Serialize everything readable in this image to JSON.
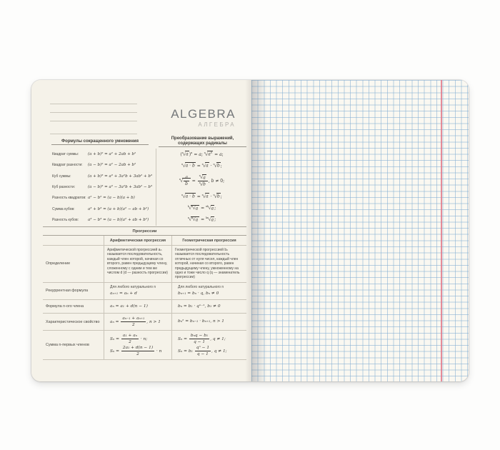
{
  "notebook": {
    "title": "ALGEBRA",
    "subtitle": "АЛГЕБРА",
    "colors": {
      "left_page_cream": "#f5f2e9",
      "grid_paper": "#faf8f1",
      "grid_blue": "#aecfe6",
      "margin_red": "#e2707f",
      "title_gray": "#75787a",
      "subtitle_gray": "#b3b0ab",
      "text_dark": "#3a3834"
    },
    "multiplication": {
      "header": "Формулы сокращенного умножения",
      "rows": [
        {
          "label": "Квадрат суммы:",
          "formula": "(a + b)² = a² + 2ab + b²"
        },
        {
          "label": "Квадрат разности:",
          "formula": "(a − b)² = a² − 2ab + b²"
        },
        {
          "label": "Куб суммы:",
          "formula": "(a + b)³ = a³ + 3a²b + 3ab² + b³"
        },
        {
          "label": "Куб разности:",
          "formula": "(a − b)³ = a³ − 3a²b + 3ab² − b³"
        },
        {
          "label": "Разность квадратов:",
          "formula": "a² − b² = (a − b)(a + b)"
        },
        {
          "label": "Сумма кубов:",
          "formula": "a³ + b³ = (a + b)(a² − ab + b²)"
        },
        {
          "label": "Разность кубов:",
          "formula": "a³ − b³ = (a − b)(a² + ab + b²)"
        }
      ]
    },
    "radicals": {
      "header_line1": "Преобразование выражений,",
      "header_line2": "содержащих радикалы",
      "rows": [
        [
          {
            "t": "tx",
            "v": "("
          },
          {
            "t": "rad",
            "i": "n",
            "c": [
              {
                "t": "it",
                "v": "a"
              }
            ]
          },
          {
            "t": "tx",
            "v": ")"
          },
          {
            "t": "sup",
            "v": "n"
          },
          {
            "t": "tx",
            "v": " = "
          },
          {
            "t": "it",
            "v": "a"
          },
          {
            "t": "tx",
            "v": ";  "
          },
          {
            "t": "rad",
            "i": "n",
            "c": [
              {
                "t": "it",
                "v": "a"
              },
              {
                "t": "sup",
                "v": "n"
              }
            ]
          },
          {
            "t": "tx",
            "v": " = "
          },
          {
            "t": "it",
            "v": "a"
          },
          {
            "t": "tx",
            "v": ";"
          }
        ],
        [
          {
            "t": "rad",
            "i": "n",
            "c": [
              {
                "t": "it",
                "v": "a"
              },
              {
                "t": "tx",
                "v": " · "
              },
              {
                "t": "it",
                "v": "b"
              }
            ]
          },
          {
            "t": "tx",
            "v": " = "
          },
          {
            "t": "rad",
            "i": "n",
            "c": [
              {
                "t": "it",
                "v": "a"
              }
            ]
          },
          {
            "t": "tx",
            "v": " · "
          },
          {
            "t": "rad",
            "i": "n",
            "c": [
              {
                "t": "it",
                "v": "b"
              }
            ]
          },
          {
            "t": "tx",
            "v": ";"
          }
        ],
        [
          {
            "t": "rad",
            "i": "n",
            "c": [
              {
                "t": "fr",
                "n": [
                  {
                    "t": "it",
                    "v": "a"
                  }
                ],
                "d": [
                  {
                    "t": "it",
                    "v": "b"
                  }
                ]
              }
            ]
          },
          {
            "t": "tx",
            "v": " = "
          },
          {
            "t": "fr",
            "n": [
              {
                "t": "rad",
                "i": "n",
                "c": [
                  {
                    "t": "it",
                    "v": "a"
                  }
                ]
              }
            ],
            "d": [
              {
                "t": "rad",
                "i": "n",
                "c": [
                  {
                    "t": "it",
                    "v": "b"
                  }
                ]
              }
            ]
          },
          {
            "t": "tx",
            "v": ", "
          },
          {
            "t": "it",
            "v": "b"
          },
          {
            "t": "tx",
            "v": " ≠ 0;"
          }
        ],
        [
          {
            "t": "rad",
            "i": "n",
            "c": [
              {
                "t": "it",
                "v": "a"
              },
              {
                "t": "tx",
                "v": " · "
              },
              {
                "t": "it",
                "v": "b"
              }
            ]
          },
          {
            "t": "tx",
            "v": " = "
          },
          {
            "t": "rad",
            "i": "n",
            "c": [
              {
                "t": "it",
                "v": "a"
              }
            ]
          },
          {
            "t": "tx",
            "v": " · "
          },
          {
            "t": "rad",
            "i": "n",
            "c": [
              {
                "t": "it",
                "v": "b"
              }
            ]
          },
          {
            "t": "tx",
            "v": ";"
          }
        ],
        [
          {
            "t": "rad",
            "i": "k",
            "c": [
              {
                "t": "rad",
                "i": "n",
                "c": [
                  {
                    "t": "it",
                    "v": "a"
                  }
                ]
              }
            ]
          },
          {
            "t": "tx",
            "v": " = "
          },
          {
            "t": "rad",
            "i": "nk",
            "c": [
              {
                "t": "it",
                "v": "a"
              }
            ]
          },
          {
            "t": "tx",
            "v": ";"
          }
        ],
        [
          {
            "t": "rad",
            "i": "n",
            "c": [
              {
                "t": "rad",
                "i": "k",
                "c": [
                  {
                    "t": "it",
                    "v": "a"
                  }
                ]
              }
            ]
          },
          {
            "t": "tx",
            "v": " = "
          },
          {
            "t": "rad",
            "i": "kn",
            "c": [
              {
                "t": "it",
                "v": "a"
              }
            ]
          },
          {
            "t": "tx",
            "v": ";"
          }
        ]
      ]
    },
    "progressions": {
      "caption": "Прогрессии",
      "col_arith": "Арифметическая прогрессия",
      "col_geom": "Геометрическая прогрессия",
      "def_label": "Определение",
      "def_arith": "Арифметической прогрессией aₙ называется последовательность, каждый член которой, начиная со второго, равен предыдущему члену, сложенному с одним и тем же числом d (d — разность прогрессии)",
      "def_geom": "Геометрической прогрессией bₙ называется последовательность отличных от нуля чисел, каждый член которой, начиная со второго, равен предыдущему члену, умноженному на одно и тоже число q (q — знаменатель прогрессии)",
      "rec_label": "Рекуррентная формула",
      "rec_note": "Для любого натурального n",
      "rec_arith": [
        {
          "t": "it",
          "v": "aₙ₊₁ = aₙ + d"
        }
      ],
      "rec_geom": [
        {
          "t": "it",
          "v": "bₙ₊₁ = bₙ · q, bₙ ≠ 0"
        }
      ],
      "nth_label": "Формула n-ого члена",
      "nth_arith": [
        {
          "t": "it",
          "v": "aₙ = a₁ + d(n − 1)"
        }
      ],
      "nth_geom": [
        {
          "t": "it",
          "v": "bₙ = b₁ · qⁿ⁻¹, b₁ ≠ 0"
        }
      ],
      "char_label": "Характеристическое свойство",
      "char_arith": [
        {
          "t": "it",
          "v": "aₙ = "
        },
        {
          "t": "fr",
          "n": [
            {
              "t": "it",
              "v": "aₙ₋₁ + aₙ₊₁"
            }
          ],
          "d": [
            {
              "t": "it",
              "v": "2"
            }
          ]
        },
        {
          "t": "it",
          "v": ", n > 1"
        }
      ],
      "char_geom": [
        {
          "t": "it",
          "v": "bₙ² = bₙ₋₁ · bₙ₊₁, n > 1"
        }
      ],
      "sum_label": "Сумма n-первых членов",
      "sum_arith_1": [
        {
          "t": "it",
          "v": "Sₙ = "
        },
        {
          "t": "fr",
          "n": [
            {
              "t": "it",
              "v": "a₁ + aₙ"
            }
          ],
          "d": [
            {
              "t": "it",
              "v": "2"
            }
          ]
        },
        {
          "t": "it",
          "v": " · n;"
        }
      ],
      "sum_arith_2": [
        {
          "t": "it",
          "v": "Sₙ = "
        },
        {
          "t": "fr",
          "n": [
            {
              "t": "it",
              "v": "2a₁ + d(n − 1)"
            }
          ],
          "d": [
            {
              "t": "it",
              "v": "2"
            }
          ]
        },
        {
          "t": "it",
          "v": " · n"
        }
      ],
      "sum_geom_1": [
        {
          "t": "it",
          "v": "Sₙ = "
        },
        {
          "t": "fr",
          "n": [
            {
              "t": "it",
              "v": "bₙq − b₁"
            }
          ],
          "d": [
            {
              "t": "it",
              "v": "q − 1"
            }
          ]
        },
        {
          "t": "it",
          "v": ", q ≠ 1;"
        }
      ],
      "sum_geom_2": [
        {
          "t": "it",
          "v": "Sₙ = b₁ "
        },
        {
          "t": "fr",
          "n": [
            {
              "t": "it",
              "v": "qⁿ − 1"
            }
          ],
          "d": [
            {
              "t": "it",
              "v": "q − 1"
            }
          ]
        },
        {
          "t": "it",
          "v": ", q ≠ 1;"
        }
      ]
    }
  }
}
